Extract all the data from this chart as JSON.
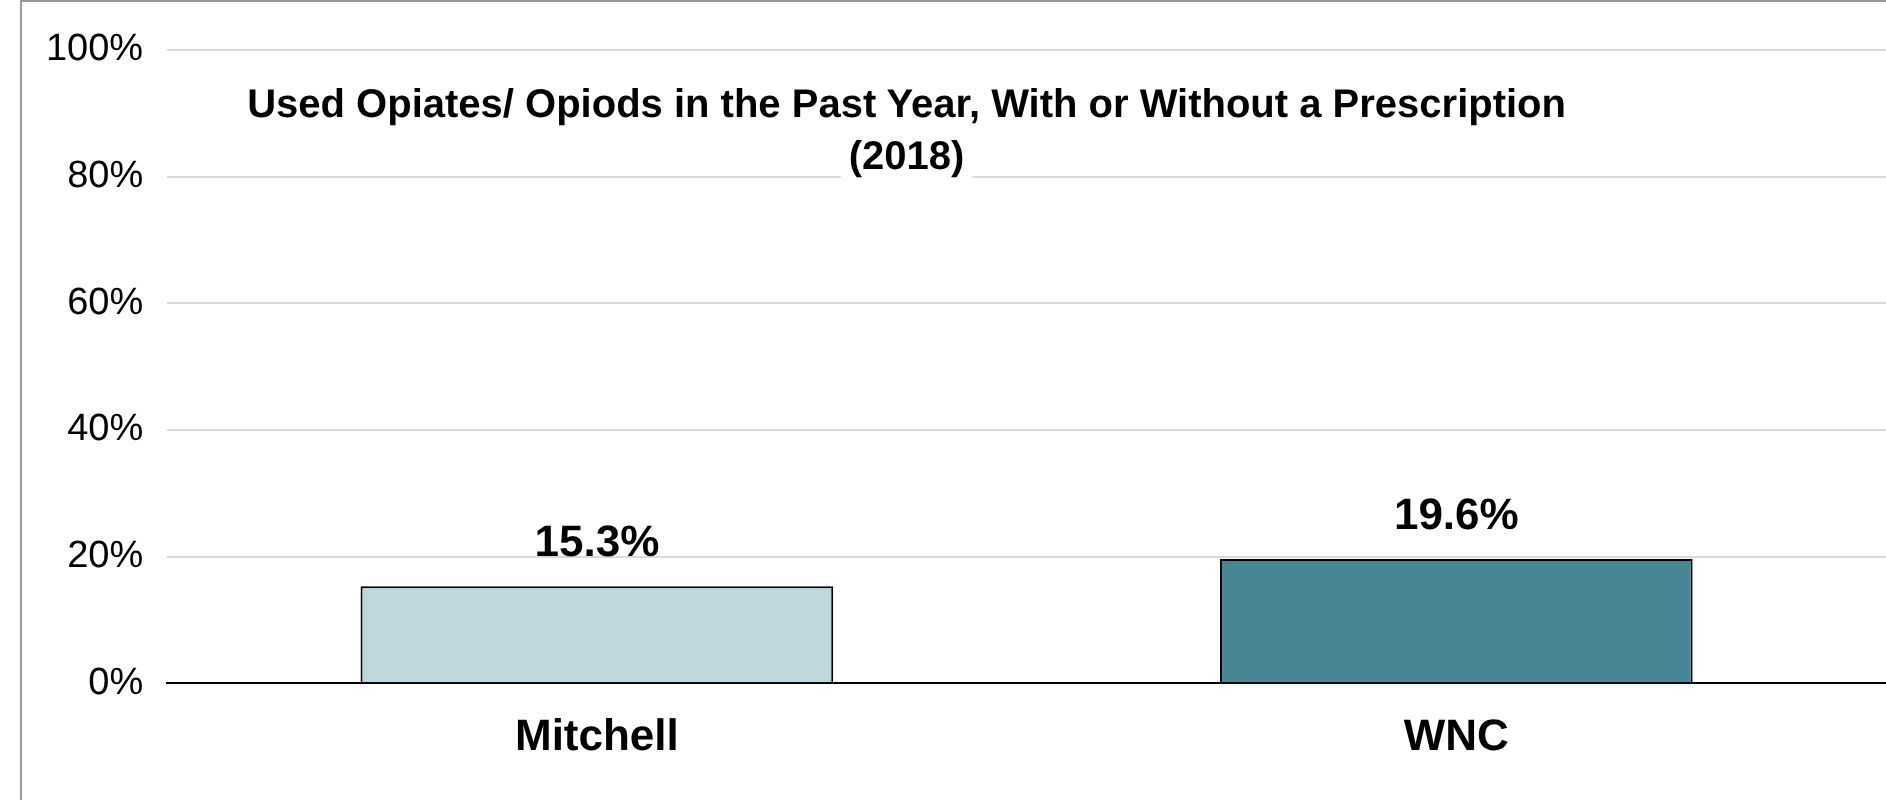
{
  "chart_data": {
    "type": "bar",
    "title": "Used Opiates/ Opiods in the Past Year, With or Without a Prescription (2018)",
    "categories": [
      "Mitchell",
      "WNC"
    ],
    "values": [
      15.3,
      19.6
    ],
    "colors": [
      "#bdd7dd",
      "#4a8796"
    ],
    "value_labels": [
      "15.3%",
      "19.6%"
    ],
    "ylim": [
      0,
      100
    ],
    "yticks": [
      {
        "value": 0,
        "label": "0%"
      },
      {
        "value": 20,
        "label": "20%"
      },
      {
        "value": 40,
        "label": "40%"
      },
      {
        "value": 60,
        "label": "60%"
      },
      {
        "value": 80,
        "label": "80%"
      },
      {
        "value": 100,
        "label": "100%"
      }
    ],
    "grid": "y",
    "legend": false
  }
}
